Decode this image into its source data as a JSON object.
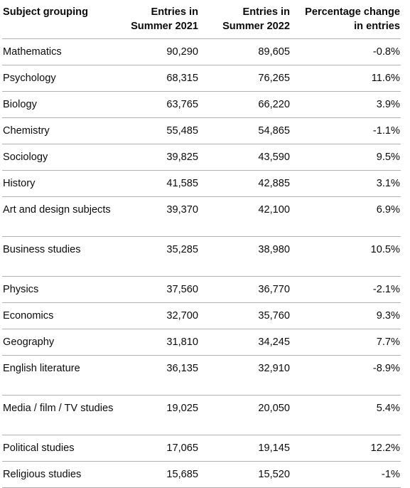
{
  "table": {
    "headers": [
      {
        "line1": "Subject grouping",
        "line2": ""
      },
      {
        "line1": "Entries in",
        "line2": "Summer 2021"
      },
      {
        "line1": "Entries in",
        "line2": "Summer 2022"
      },
      {
        "line1": "Percentage change",
        "line2": "in entries"
      }
    ],
    "rows": [
      {
        "subject": "Mathematics",
        "y2021": "90,290",
        "y2022": "89,605",
        "change": "-0.8%"
      },
      {
        "subject": "Psychology",
        "y2021": "68,315",
        "y2022": "76,265",
        "change": "11.6%"
      },
      {
        "subject": "Biology",
        "y2021": "63,765",
        "y2022": "66,220",
        "change": "3.9%"
      },
      {
        "subject": "Chemistry",
        "y2021": "55,485",
        "y2022": "54,865",
        "change": "-1.1%"
      },
      {
        "subject": "Sociology",
        "y2021": "39,825",
        "y2022": "43,590",
        "change": "9.5%"
      },
      {
        "subject": "History",
        "y2021": "41,585",
        "y2022": "42,885",
        "change": "3.1%"
      },
      {
        "subject": "Art and design subjects",
        "y2021": "39,370",
        "y2022": "42,100",
        "change": "6.9%"
      },
      {
        "subject": "Business studies",
        "y2021": "35,285",
        "y2022": "38,980",
        "change": "10.5%"
      },
      {
        "subject": "Physics",
        "y2021": "37,560",
        "y2022": "36,770",
        "change": "-2.1%"
      },
      {
        "subject": "Economics",
        "y2021": "32,700",
        "y2022": "35,760",
        "change": "9.3%"
      },
      {
        "subject": "Geography",
        "y2021": "31,810",
        "y2022": "34,245",
        "change": "7.7%"
      },
      {
        "subject": "English literature",
        "y2021": "36,135",
        "y2022": "32,910",
        "change": "-8.9%"
      },
      {
        "subject": "Media / film / TV studies",
        "y2021": "19,025",
        "y2022": "20,050",
        "change": "5.4%"
      },
      {
        "subject": "Political studies",
        "y2021": "17,065",
        "y2022": "19,145",
        "change": "12.2%"
      },
      {
        "subject": "Religious studies",
        "y2021": "15,685",
        "y2022": "15,520",
        "change": "-1%"
      }
    ]
  }
}
